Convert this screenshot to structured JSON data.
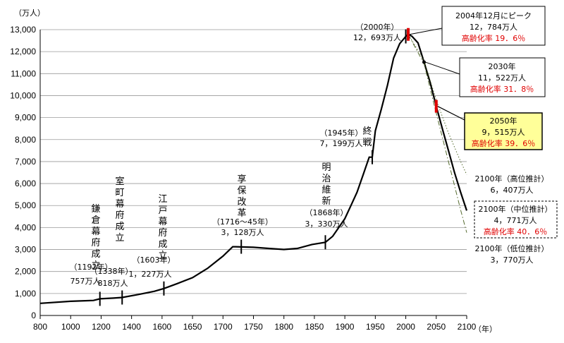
{
  "chart_data": {
    "type": "line",
    "y_unit": "（万人）",
    "x_unit": "（年）",
    "xlim": [
      800,
      2100
    ],
    "ylim": [
      0,
      13000
    ],
    "x_ticks": [
      "800",
      "1000",
      "1200",
      "1400",
      "1600",
      "1650",
      "1700",
      "1750",
      "1800",
      "1850",
      "1900",
      "1950",
      "2000",
      "2050",
      "2100"
    ],
    "y_ticks": [
      "0",
      "1,000",
      "2,000",
      "3,000",
      "4,000",
      "5,000",
      "6,000",
      "7,000",
      "8,000",
      "9,000",
      "10,000",
      "11,000",
      "12,000",
      "13,000"
    ],
    "series": [
      {
        "style": "solid",
        "points": [
          [
            800,
            551
          ],
          [
            1000,
            644
          ],
          [
            1150,
            684
          ],
          [
            1192,
            757
          ],
          [
            1280,
            790
          ],
          [
            1338,
            818
          ],
          [
            1450,
            960
          ],
          [
            1550,
            1100
          ],
          [
            1603,
            1227
          ],
          [
            1625,
            1450
          ],
          [
            1650,
            1720
          ],
          [
            1675,
            2150
          ],
          [
            1700,
            2700
          ],
          [
            1716,
            3128
          ],
          [
            1721,
            3128
          ],
          [
            1750,
            3100
          ],
          [
            1775,
            3050
          ],
          [
            1800,
            3000
          ],
          [
            1822,
            3050
          ],
          [
            1846,
            3230
          ],
          [
            1868,
            3330
          ],
          [
            1880,
            3600
          ],
          [
            1890,
            4000
          ],
          [
            1900,
            4400
          ],
          [
            1910,
            5000
          ],
          [
            1920,
            5600
          ],
          [
            1930,
            6400
          ],
          [
            1940,
            7200
          ],
          [
            1945,
            7199
          ],
          [
            1950,
            8400
          ],
          [
            1960,
            9400
          ],
          [
            1970,
            10470
          ],
          [
            1980,
            11706
          ],
          [
            1990,
            12361
          ],
          [
            2000,
            12693
          ],
          [
            2004,
            12784
          ],
          [
            2010,
            12700
          ],
          [
            2020,
            12400
          ],
          [
            2030,
            11522
          ],
          [
            2040,
            10600
          ],
          [
            2050,
            9515
          ],
          [
            2060,
            8500
          ],
          [
            2070,
            7500
          ],
          [
            2080,
            6500
          ],
          [
            2090,
            5600
          ],
          [
            2100,
            4771
          ]
        ]
      },
      {
        "style": "dotted",
        "points": [
          [
            2004,
            12784
          ],
          [
            2030,
            11600
          ],
          [
            2050,
            9800
          ],
          [
            2070,
            8300
          ],
          [
            2090,
            7000
          ],
          [
            2100,
            6407
          ]
        ]
      },
      {
        "style": "dashdot",
        "points": [
          [
            2004,
            12784
          ],
          [
            2030,
            11450
          ],
          [
            2050,
            9200
          ],
          [
            2070,
            7000
          ],
          [
            2090,
            4800
          ],
          [
            2100,
            3770
          ]
        ]
      }
    ],
    "annotations": {
      "kamakura": {
        "vtext": "鎌倉幕府成立",
        "year": "（1192年）",
        "value": "757万人",
        "x": 1192,
        "y": 757
      },
      "muromachi": {
        "vtext": "室町幕府成立",
        "year": "（1338年）",
        "value": "818万人",
        "x": 1338,
        "y": 818
      },
      "edo": {
        "vtext": "江戸幕府成立",
        "year": "（1603年）",
        "value": "1，227万人",
        "x": 1603,
        "y": 1227
      },
      "kyoho": {
        "vtext": "享保改革",
        "year": "（1716～45年）",
        "value": "3，128万人",
        "x": 1730,
        "y": 3128
      },
      "meiji": {
        "vtext": "明治維新",
        "year": "（1868年）",
        "value": "3，330万人",
        "x": 1868,
        "y": 3330
      },
      "shusen": {
        "vtext": "終戦",
        "year": "（1945年）",
        "value": "7，199万人",
        "x": 1945,
        "y": 7199
      },
      "y2000": {
        "year": "（2000年）",
        "value": "12，693万人",
        "x": 2000,
        "y": 12693
      },
      "peak": {
        "line1": "2004年12月にピーク",
        "line2": "12，784万人",
        "line3": "高齢化率 19．6％",
        "x": 2004,
        "y": 12784
      },
      "y2030": {
        "line1": "2030年",
        "line2": "11，522万人",
        "line3": "高齢化率 31．8％",
        "x": 2030,
        "y": 11522
      },
      "y2050": {
        "line1": "2050年",
        "line2": "9，515万人",
        "line3": "高齢化率 39．6％",
        "x": 2050,
        "y": 9515
      },
      "high": {
        "line1": "2100年（高位推計）",
        "line2": "6，407万人"
      },
      "mid": {
        "line1": "2100年（中位推計）",
        "line2": "4，771万人",
        "line3": "高齢化率 40．6％"
      },
      "low": {
        "line1": "2100年（低位推計）",
        "line2": "3，770万人"
      }
    },
    "colors": {
      "line": "#000000",
      "highlight_box": "#ffff99",
      "marker": "#e00000",
      "aging_text": "#e00000"
    }
  }
}
